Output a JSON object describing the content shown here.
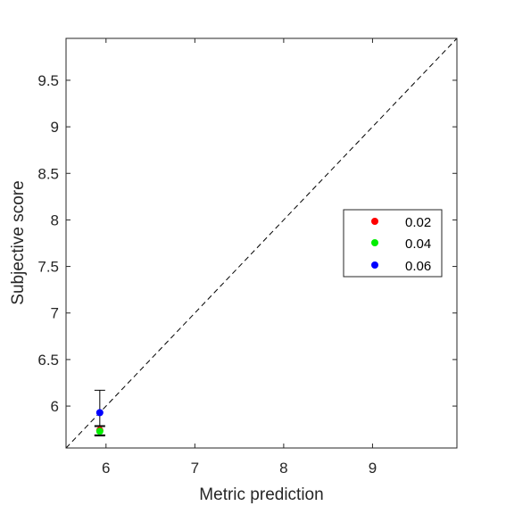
{
  "chart_data": {
    "type": "scatter",
    "xlabel": "Metric prediction",
    "ylabel": "Subjective score",
    "xlim": [
      5.55,
      9.95
    ],
    "ylim": [
      5.55,
      9.95
    ],
    "xticks": [
      6,
      7,
      8,
      9
    ],
    "xtick_labels": [
      "6",
      "7",
      "8",
      "9"
    ],
    "yticks": [
      6,
      6.5,
      7,
      7.5,
      8,
      8.5,
      9,
      9.5
    ],
    "ytick_labels": [
      "6",
      "6.5",
      "7",
      "7.5",
      "8",
      "8.5",
      "9",
      "9.5"
    ],
    "grid": false,
    "reference_line": {
      "style": "dashed",
      "from": [
        5.55,
        5.55
      ],
      "to": [
        9.95,
        9.95
      ]
    },
    "legend": {
      "placement": "right",
      "entries": [
        "0.02",
        "0.04",
        "0.06"
      ]
    },
    "series": [
      {
        "name": "0.02",
        "color": "#ff0000",
        "points": [
          {
            "x": 5.93,
            "y": 5.74,
            "err_low": 5.69,
            "err_high": 5.79
          }
        ]
      },
      {
        "name": "0.04",
        "color": "#00ee00",
        "points": [
          {
            "x": 5.93,
            "y": 5.73,
            "err_low": 5.68,
            "err_high": 5.78
          }
        ]
      },
      {
        "name": "0.06",
        "color": "#0000ff",
        "points": [
          {
            "x": 5.93,
            "y": 5.93,
            "err_low": 5.69,
            "err_high": 6.17
          }
        ]
      }
    ]
  }
}
